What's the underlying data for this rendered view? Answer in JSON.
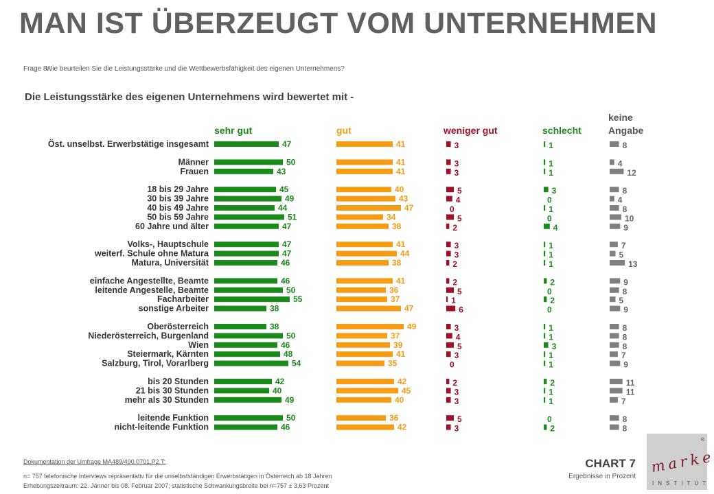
{
  "title": "MAN IST ÜBERZEUGT VOM UNTERNEHMEN",
  "question": {
    "label": "Frage 8:",
    "text": "Wie beurteilen Sie die Leistungsstärke und die Wettbewerbsfähigkeit des eigenen Unternehmens?"
  },
  "subtitle": "Die Leistungsstärke des eigenen Unternehmens wird bewertet mit -",
  "footer": {
    "doc": "Dokumentation der Umfrage MA489/490.0701.P2.T:",
    "n": "n= 757  telefonische Interviews repräsentativ für die unselbstständigen Erwerbstätigen in Österreich ab 18 Jahren",
    "period": "Erhebungszeitraum: 22. Jänner bis 08. Februar 2007; statistische Schwankungsbreite bei n=757 ± 3,63 Prozent",
    "chart_number": "CHART 7",
    "unit_note": "Ergebnisse in Prozent"
  },
  "logo": {
    "word": "market",
    "sub": "INSTITUT",
    "reg": "®"
  },
  "colors": {
    "sehr_gut": "#1a8a1a",
    "gut": "#f59b14",
    "weniger_gut": "#a01028",
    "schlecht": "#1a8a1a",
    "keine_angabe": "#808080"
  },
  "chart_data": {
    "type": "bar",
    "orientation": "horizontal",
    "series": [
      {
        "name": "sehr gut",
        "name_line1": "",
        "name_line2": "sehr gut",
        "values": [
          47,
          50,
          43,
          45,
          49,
          44,
          51,
          47,
          47,
          47,
          46,
          46,
          50,
          55,
          38,
          38,
          50,
          46,
          48,
          54,
          42,
          40,
          49,
          50,
          46
        ]
      },
      {
        "name": "gut",
        "name_line1": "",
        "name_line2": "gut",
        "values": [
          41,
          41,
          41,
          40,
          43,
          47,
          34,
          38,
          41,
          44,
          38,
          41,
          36,
          37,
          47,
          49,
          37,
          39,
          41,
          35,
          42,
          45,
          40,
          36,
          42
        ]
      },
      {
        "name": "weniger gut",
        "name_line1": "",
        "name_line2": "weniger gut",
        "values": [
          3,
          3,
          3,
          5,
          4,
          0,
          5,
          2,
          3,
          3,
          2,
          2,
          5,
          1,
          6,
          3,
          4,
          5,
          3,
          0,
          2,
          3,
          3,
          5,
          3
        ]
      },
      {
        "name": "schlecht",
        "name_line1": "",
        "name_line2": "schlecht",
        "values": [
          1,
          1,
          1,
          3,
          0,
          1,
          0,
          4,
          1,
          1,
          1,
          2,
          0,
          2,
          0,
          1,
          1,
          3,
          1,
          1,
          2,
          1,
          1,
          0,
          2
        ]
      },
      {
        "name": "keine Angabe",
        "name_line1": "keine",
        "name_line2": "Angabe",
        "values": [
          8,
          4,
          12,
          8,
          4,
          8,
          10,
          9,
          7,
          5,
          13,
          9,
          8,
          5,
          9,
          8,
          8,
          8,
          7,
          9,
          11,
          11,
          7,
          8,
          8
        ]
      }
    ],
    "categories": [
      "Öst. unselbst. Erwerbstätige insgesamt",
      "Männer",
      "Frauen",
      "18 bis 29 Jahre",
      "30 bis 39 Jahre",
      "40 bis 49 Jahre",
      "50 bis 59 Jahre",
      "60 Jahre und älter",
      "Volks-, Hauptschule",
      "weiterf. Schule ohne Matura",
      "Matura, Universität",
      "einfache Angestellte, Beamte",
      "leitende Angestelle, Beamte",
      "Facharbeiter",
      "sonstige Arbeiter",
      "Oberösterreich",
      "Niederösterreich, Burgenland",
      "Wien",
      "Steiermark, Kärnten",
      "Salzburg, Tirol, Vorarlberg",
      "bis 20 Stunden",
      "21 bis 30 Stunden",
      "mehr als 30 Stunden",
      "leitende Funktion",
      "nicht-leitende Funktion"
    ],
    "groups": [
      [
        0
      ],
      [
        1,
        2
      ],
      [
        3,
        4,
        5,
        6,
        7
      ],
      [
        8,
        9,
        10
      ],
      [
        11,
        12,
        13,
        14
      ],
      [
        15,
        16,
        17,
        18,
        19
      ],
      [
        20,
        21,
        22
      ],
      [
        23,
        24
      ]
    ],
    "unit": "Prozent",
    "legend_placement": "top",
    "grid": false
  }
}
